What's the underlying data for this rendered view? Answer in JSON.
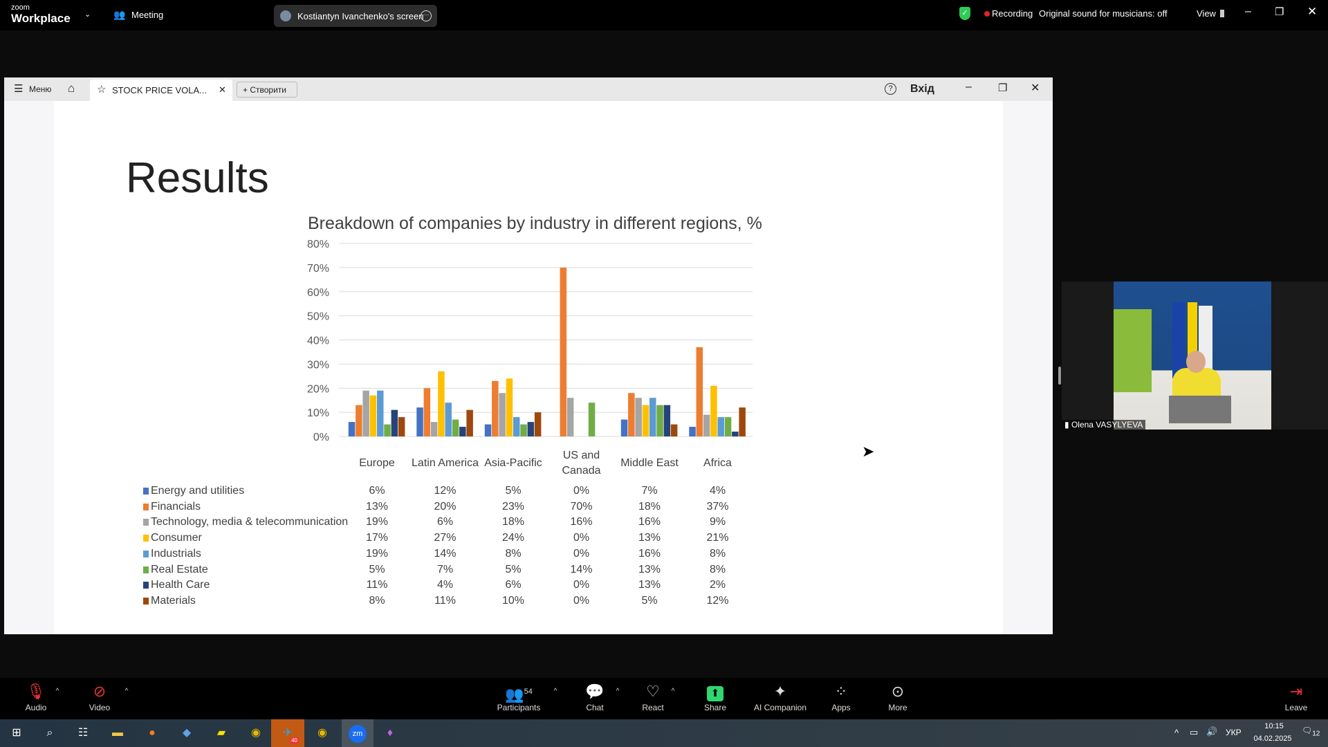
{
  "zoom": {
    "brand_small": "zoom",
    "brand": "Workplace",
    "meeting": "Meeting",
    "sharer": "Kostiantyn Ivanchenko's screen",
    "recording": "Recording",
    "original_sound": "Original sound for musicians: off",
    "view": "View"
  },
  "app": {
    "menu": "Меню",
    "tab_title": "STOCK PRICE VOLA...",
    "create": "Створити",
    "login": "Вхід"
  },
  "slide": {
    "title": "Results"
  },
  "chart_data": {
    "type": "bar",
    "title": "Breakdown of companies by industry in different regions, %",
    "categories": [
      "Europe",
      "Latin America",
      "Asia-Pacific",
      "US and Canada",
      "Middle East",
      "Africa"
    ],
    "category_lines": [
      [
        "Europe"
      ],
      [
        "Latin America"
      ],
      [
        "Asia-Pacific"
      ],
      [
        "US and",
        "Canada"
      ],
      [
        "Middle East"
      ],
      [
        "Africa"
      ]
    ],
    "ylim": [
      0,
      80
    ],
    "yticks": [
      "0%",
      "10%",
      "20%",
      "30%",
      "40%",
      "50%",
      "60%",
      "70%",
      "80%"
    ],
    "grid": true,
    "legend": "bottom-table",
    "series": [
      {
        "name": "Energy and utilities",
        "color": "#4472c4",
        "values": [
          6,
          12,
          5,
          0,
          7,
          4
        ]
      },
      {
        "name": "Financials",
        "color": "#ed7d31",
        "values": [
          13,
          20,
          23,
          70,
          18,
          37
        ]
      },
      {
        "name": "Technology, media & telecommunication",
        "color": "#a5a5a5",
        "values": [
          19,
          6,
          18,
          16,
          16,
          9
        ]
      },
      {
        "name": "Consumer",
        "color": "#ffc000",
        "values": [
          17,
          27,
          24,
          0,
          13,
          21
        ]
      },
      {
        "name": "Industrials",
        "color": "#5b9bd5",
        "values": [
          19,
          14,
          8,
          0,
          16,
          8
        ]
      },
      {
        "name": "Real Estate",
        "color": "#70ad47",
        "values": [
          5,
          7,
          5,
          14,
          13,
          8
        ]
      },
      {
        "name": "Health Care",
        "color": "#264478",
        "values": [
          11,
          4,
          6,
          0,
          13,
          2
        ]
      },
      {
        "name": "Materials",
        "color": "#9e480e",
        "values": [
          8,
          11,
          10,
          0,
          5,
          12
        ]
      }
    ]
  },
  "participant": {
    "name": "Olena VASYLYEVA"
  },
  "toolbar": {
    "audio": "Audio",
    "video": "Video",
    "participants": "Participants",
    "participants_count": "54",
    "chat": "Chat",
    "react": "React",
    "share": "Share",
    "ai": "AI Companion",
    "apps": "Apps",
    "more": "More",
    "leave": "Leave"
  },
  "taskbar": {
    "lang": "УКР",
    "time": "10:15",
    "date": "04.02.2025",
    "notifications": "12",
    "telegram_badge": "40"
  }
}
